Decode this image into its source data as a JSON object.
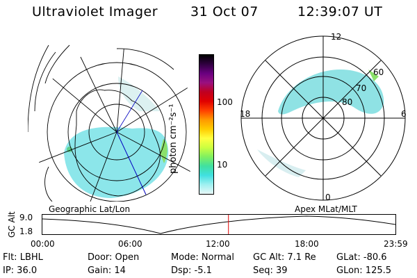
{
  "header": {
    "title": "Ultraviolet Imager",
    "date": "31 Oct 07",
    "time": "12:39:07 UT"
  },
  "maps": {
    "geo_label": "Geographic Lat/Lon",
    "apex_label": "Apex MLat/MLT",
    "polar": {
      "mlt_labels": [
        "12",
        "18",
        "6",
        "0"
      ],
      "lat_labels": [
        "60",
        "70",
        "80"
      ]
    }
  },
  "colorbar": {
    "unit_label": "photon cm⁻²s⁻¹",
    "ticks": [
      "100",
      "10"
    ],
    "colors": [
      "#000000",
      "#300040",
      "#6a0080",
      "#9a1080",
      "#c00020",
      "#e00000",
      "#ff4000",
      "#ff9900",
      "#ffcc00",
      "#ffff40",
      "#ccff40",
      "#80f060",
      "#40e0a0",
      "#40e0e0",
      "#a0f0f0",
      "#e8f8f8"
    ]
  },
  "altitude_plot": {
    "ylabel": "GC Alt",
    "yticks": [
      "9.0",
      "1.8"
    ],
    "xticks": [
      "00:00",
      "06:00",
      "12:00",
      "18:00",
      "23:59"
    ],
    "current_time_fraction": 0.527
  },
  "info": {
    "filter": "Flt: LBHL",
    "ip": "IP: 36.0",
    "door": "Door: Open",
    "gain": "Gain: 14",
    "mode": "Mode: Normal",
    "dsp": "Dsp:   -5.1",
    "gc_alt": "GC Alt: 7.1 Re",
    "seq": "Seq: 39",
    "glat": "GLat: -80.6",
    "glon": "GLon: 125.5"
  }
}
